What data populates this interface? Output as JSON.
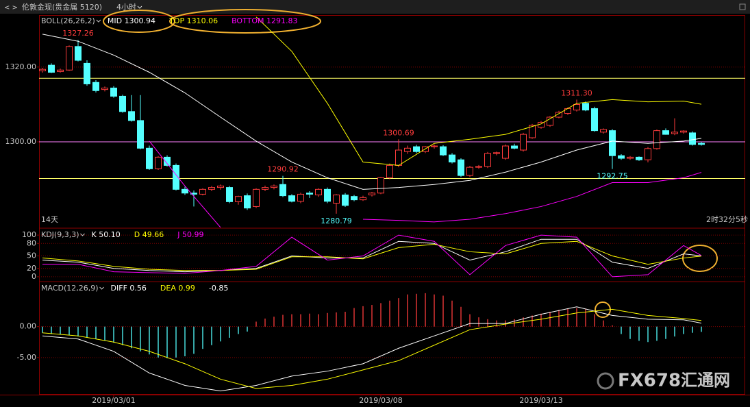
{
  "toolbar": {
    "title": "伦敦金现(贵金属 5120)",
    "period": "4小时"
  },
  "watermark": {
    "brand": "FX678",
    "name": "汇通网"
  },
  "chart_data": [
    {
      "type": "candlestick",
      "indicator": "BOLL(26,26,2)",
      "categories": [
        null,
        null,
        null,
        null,
        null,
        null,
        null,
        null,
        "2019/03/01",
        null,
        null,
        null,
        null,
        null,
        null,
        null,
        null,
        null,
        null,
        null,
        null,
        null,
        null,
        null,
        null,
        null,
        null,
        null,
        null,
        null,
        null,
        null,
        null,
        null,
        null,
        null,
        null,
        null,
        "2019/03/08",
        null,
        null,
        null,
        null,
        null,
        null,
        null,
        null,
        null,
        null,
        null,
        null,
        null,
        null,
        null,
        null,
        null,
        "2019/03/13",
        null,
        null,
        null,
        null,
        null,
        null,
        null,
        null,
        null,
        null,
        null,
        null,
        null,
        null,
        null,
        null,
        null,
        null
      ],
      "open": [
        1319.0,
        1320.5,
        1318.8,
        1319.2,
        1325.5,
        1321.0,
        1315.9,
        1314.0,
        1314.4,
        1312.2,
        1308.1,
        1305.7,
        1298.3,
        1292.8,
        1295.9,
        1293.7,
        1287.3,
        1286.3,
        1286.0,
        1287.3,
        1287.8,
        1287.8,
        1284.0,
        1285.6,
        1282.7,
        1287.3,
        1287.8,
        1288.6,
        1285.6,
        1284.1,
        1286.3,
        1285.8,
        1287.3,
        1283.6,
        1285.8,
        1285.4,
        1284.5,
        1285.8,
        1286.3,
        1290.4,
        1293.7,
        1297.4,
        1298.7,
        1297.4,
        1298.7,
        1298.7,
        1296.5,
        1295.2,
        1291.0,
        1293.2,
        1293.4,
        1296.9,
        1295.6,
        1298.9,
        1297.8,
        1301.1,
        1303.9,
        1304.4,
        1306.6,
        1307.6,
        1308.5,
        1310.3,
        1308.9,
        1302.6,
        1303.0,
        1296.3,
        1295.6,
        1295.9,
        1295.2,
        1298.2,
        1303.0,
        1302.2,
        1302.6,
        1302.4,
        1299.6
      ],
      "high": [
        1319.8,
        1321.0,
        1319.6,
        1325.8,
        1327.26,
        1321.8,
        1316.5,
        1314.8,
        1314.9,
        1312.6,
        1312.5,
        1312.5,
        1299.0,
        1296.2,
        1296.4,
        1294.2,
        1288.0,
        1287.0,
        1287.6,
        1288.2,
        1288.6,
        1288.2,
        1285.6,
        1286.2,
        1287.6,
        1288.3,
        1288.6,
        1290.92,
        1286.0,
        1286.4,
        1286.8,
        1287.6,
        1287.8,
        1286.0,
        1286.3,
        1285.8,
        1285.6,
        1286.6,
        1290.6,
        1294.2,
        1300.69,
        1299.0,
        1299.2,
        1298.9,
        1299.3,
        1299.1,
        1297.0,
        1295.6,
        1293.6,
        1293.8,
        1297.3,
        1297.4,
        1299.3,
        1299.5,
        1302.4,
        1304.8,
        1305.6,
        1306.9,
        1308.3,
        1309.2,
        1311.3,
        1310.8,
        1309.4,
        1303.6,
        1303.4,
        1296.7,
        1296.2,
        1296.1,
        1298.6,
        1303.3,
        1303.6,
        1306.3,
        1303.1,
        1302.8,
        1300.0
      ],
      "low": [
        1318.5,
        1318.4,
        1318.5,
        1319.0,
        1321.5,
        1315.0,
        1313.2,
        1313.5,
        1311.8,
        1307.8,
        1305.4,
        1298.0,
        1292.5,
        1292.5,
        1293.4,
        1287.0,
        1285.8,
        1282.7,
        1285.7,
        1286.8,
        1287.2,
        1283.6,
        1283.2,
        1281.8,
        1282.3,
        1286.8,
        1287.3,
        1285.2,
        1283.8,
        1283.6,
        1285.0,
        1285.3,
        1283.6,
        1280.79,
        1282.6,
        1284.1,
        1284.2,
        1285.4,
        1286.0,
        1290.0,
        1293.2,
        1296.8,
        1297.0,
        1297.0,
        1298.2,
        1296.2,
        1294.2,
        1290.6,
        1290.6,
        1292.8,
        1293.0,
        1296.4,
        1295.2,
        1298.0,
        1297.4,
        1300.8,
        1303.5,
        1304.0,
        1306.3,
        1307.2,
        1308.1,
        1308.2,
        1302.7,
        1302.2,
        1292.75,
        1295.2,
        1295.2,
        1294.9,
        1294.5,
        1297.9,
        1301.9,
        1301.8,
        1302.2,
        1299.0,
        1299.0
      ],
      "close": [
        1319.4,
        1318.6,
        1319.2,
        1325.5,
        1321.8,
        1315.5,
        1313.7,
        1314.4,
        1312.2,
        1308.1,
        1305.7,
        1298.3,
        1292.8,
        1295.9,
        1293.7,
        1287.3,
        1286.3,
        1286.0,
        1287.3,
        1287.8,
        1288.2,
        1284.0,
        1285.4,
        1282.3,
        1287.3,
        1287.8,
        1288.2,
        1285.6,
        1284.1,
        1286.0,
        1286.0,
        1287.3,
        1284.1,
        1285.8,
        1283.0,
        1284.5,
        1285.1,
        1286.3,
        1290.4,
        1293.7,
        1297.8,
        1298.3,
        1297.4,
        1298.7,
        1298.9,
        1296.5,
        1294.6,
        1291.0,
        1293.2,
        1293.4,
        1296.9,
        1297.1,
        1298.9,
        1298.3,
        1302.0,
        1304.4,
        1305.2,
        1306.6,
        1307.9,
        1308.9,
        1310.0,
        1308.5,
        1303.0,
        1303.3,
        1296.3,
        1295.6,
        1295.9,
        1295.2,
        1298.2,
        1303.0,
        1302.0,
        1302.6,
        1302.9,
        1299.3,
        1299.3
      ],
      "up_color": "#ff3c3c",
      "down_color": "#54ffff",
      "ylim": [
        1277.1,
        1333.9
      ],
      "yticks": [
        {
          "value": 1300,
          "label": "1300.00"
        },
        {
          "value": 1320,
          "label": "1320.00"
        }
      ],
      "grid": true,
      "x": [
        0,
        4,
        8,
        12,
        16,
        20,
        24,
        28,
        32,
        36,
        40,
        44,
        48,
        52,
        56,
        60,
        64,
        68,
        72,
        74
      ],
      "series": [
        {
          "name": "MID",
          "color": "#ffffff",
          "values": [
            1328.8,
            1326.9,
            1323.2,
            1318.6,
            1313.1,
            1306.6,
            1300.2,
            1294.6,
            1290.4,
            1287.3,
            1287.8,
            1288.6,
            1289.7,
            1291.9,
            1294.6,
            1297.8,
            1300.2,
            1299.6,
            1300.2,
            1300.94
          ]
        },
        {
          "name": "TOP",
          "color": "#ffff00",
          "values": [
            null,
            null,
            null,
            null,
            null,
            null,
            1333.4,
            1324.2,
            1310.3,
            1294.6,
            1293.7,
            1299.6,
            1300.7,
            1302,
            1304.8,
            1310.3,
            1311.3,
            1310.7,
            1310.9,
            1310.06
          ]
        },
        {
          "name": "BOTTOM",
          "color": "#ff00ff",
          "values": [
            null,
            null,
            null,
            1300.2,
            1288.2,
            1277.1,
            null,
            null,
            null,
            1279.3,
            1279.0,
            1278.6,
            1279.3,
            1280.8,
            1282.7,
            1285.4,
            1289.1,
            1289.1,
            1290.4,
            1291.83
          ]
        }
      ],
      "reference_lines": [
        {
          "value": 1317,
          "color": "#ffff66"
        },
        {
          "value": 1300,
          "color": "#ff80ff"
        },
        {
          "value": 1290.2,
          "color": "#ffff66"
        }
      ],
      "annotations": [
        {
          "candle": 4,
          "field": "high",
          "label": "1327.26"
        },
        {
          "candle": 27,
          "field": "high",
          "label": "1290.92"
        },
        {
          "candle": 33,
          "field": "low",
          "label": "1280.79"
        },
        {
          "candle": 40,
          "field": "high",
          "label": "1300.69"
        },
        {
          "candle": 60,
          "field": "high",
          "label": "1311.30"
        },
        {
          "candle": 64,
          "field": "low",
          "label": "1292.75"
        }
      ],
      "footer_left": "14天",
      "footer_right": "2时32分5秒"
    },
    {
      "type": "line",
      "indicator": "KDJ(9,3,3)",
      "x": [
        0,
        4,
        8,
        12,
        16,
        20,
        24,
        28,
        32,
        36,
        40,
        44,
        48,
        52,
        56,
        60,
        64,
        68,
        72,
        74
      ],
      "series": [
        {
          "name": "K",
          "color": "#ffffff",
          "values": [
            40,
            35,
            20,
            15,
            12,
            15,
            20,
            50,
            45,
            45,
            85,
            80,
            40,
            60,
            90,
            90,
            35,
            20,
            55,
            50.1
          ],
          "value_labels": [
            null,
            null,
            null,
            null,
            null,
            null,
            null,
            null,
            null,
            null,
            null,
            null,
            null,
            null,
            null,
            null,
            null,
            null,
            null,
            "50.10"
          ]
        },
        {
          "name": "D",
          "color": "#ffff00",
          "values": [
            45,
            38,
            25,
            18,
            15,
            15,
            18,
            48,
            48,
            43,
            70,
            78,
            60,
            55,
            80,
            85,
            50,
            30,
            45,
            49.66
          ]
        },
        {
          "name": "J",
          "color": "#ff00ff",
          "values": [
            30,
            30,
            12,
            10,
            8,
            15,
            25,
            95,
            40,
            50,
            100,
            85,
            5,
            75,
            100,
            95,
            0,
            5,
            75,
            50.99
          ]
        }
      ],
      "ylim": [
        -10,
        115
      ],
      "yticks": [
        0,
        20,
        50,
        80,
        100
      ],
      "grid": true
    },
    {
      "type": "macd",
      "indicator": "MACD(12,26,9)",
      "x": [
        0,
        4,
        8,
        12,
        16,
        20,
        24,
        28,
        32,
        36,
        40,
        44,
        48,
        52,
        56,
        60,
        64,
        68,
        72,
        74
      ],
      "series": [
        {
          "name": "DIFF",
          "color": "#ffffff",
          "values": [
            -1.5,
            -2.0,
            -4.0,
            -7.5,
            -9.5,
            -10.4,
            -9.5,
            -8.0,
            -7.2,
            -6.0,
            -3.5,
            -1.5,
            0.5,
            0.5,
            2.0,
            3.2,
            1.8,
            1.2,
            1.1,
            0.56
          ]
        },
        {
          "name": "DEA",
          "color": "#ffff00",
          "values": [
            -1.0,
            -1.5,
            -2.5,
            -4.0,
            -6.0,
            -8.5,
            -10.0,
            -9.5,
            -8.5,
            -7.0,
            -5.5,
            -3.0,
            -0.5,
            0.4,
            1.2,
            2.2,
            2.8,
            1.8,
            1.3,
            0.99
          ]
        }
      ],
      "histogram": {
        "up_color": "#ff3c3c",
        "down_color": "#54ffff",
        "values": [
          -1.0,
          -1.2,
          -1.3,
          -1.4,
          -1.6,
          -1.8,
          -2.0,
          -2.3,
          -2.6,
          -3.0,
          -3.5,
          -4.0,
          -4.5,
          -5.0,
          -5.1,
          -5.0,
          -4.8,
          -4.4,
          -3.6,
          -3.0,
          -2.4,
          -1.8,
          -1.2,
          -0.8,
          0.8,
          1.3,
          1.6,
          1.9,
          2.0,
          2.0,
          2.1,
          2.0,
          2.2,
          2.3,
          2.4,
          3.0,
          3.3,
          3.5,
          3.8,
          4.2,
          4.6,
          5.2,
          5.3,
          5.4,
          5.2,
          5.0,
          4.2,
          3.2,
          2.0,
          1.5,
          1.2,
          1.0,
          1.0,
          1.2,
          1.5,
          1.8,
          2.1,
          2.4,
          2.7,
          2.9,
          3.0,
          2.8,
          2.0,
          1.0,
          0.2,
          -1.2,
          -2.0,
          -2.3,
          -2.5,
          -2.3,
          -2.0,
          -1.6,
          -1.2,
          -1.0,
          -0.85
        ]
      },
      "ylim": [
        -11,
        7.16
      ],
      "yticks": [
        {
          "value": 0,
          "label": "0.00"
        },
        {
          "value": -5,
          "label": "-5.00"
        }
      ],
      "grid": true
    }
  ]
}
